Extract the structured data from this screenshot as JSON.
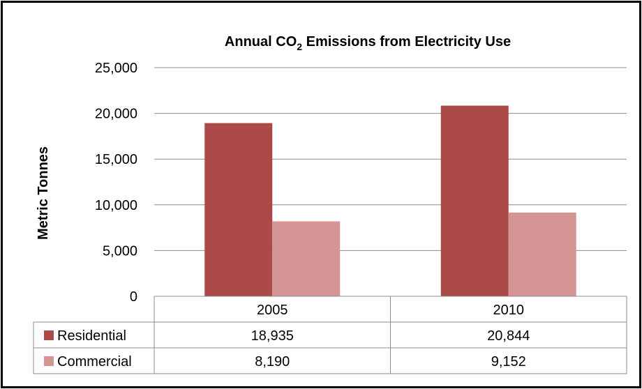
{
  "chart_data": {
    "type": "bar",
    "title_main": "Annual CO",
    "title_sub": "2",
    "title_rest": " Emissions from Electricity Use",
    "ylabel": "Metric Tonnes",
    "xlabel": "",
    "ylim": [
      0,
      25000
    ],
    "yticks": [
      0,
      5000,
      10000,
      15000,
      20000,
      25000
    ],
    "ytick_labels": [
      "0",
      "5,000",
      "10,000",
      "15,000",
      "20,000",
      "25,000"
    ],
    "categories": [
      "2005",
      "2010"
    ],
    "grid": true,
    "legend": "data-table",
    "series": [
      {
        "name": "Residential",
        "color": "#ab4a49",
        "values": [
          18935,
          20844
        ],
        "labels": [
          "18,935",
          "20,844"
        ]
      },
      {
        "name": "Commercial",
        "color": "#d49594",
        "values": [
          8190,
          9152
        ],
        "labels": [
          "8,190",
          "9,152"
        ]
      }
    ]
  }
}
